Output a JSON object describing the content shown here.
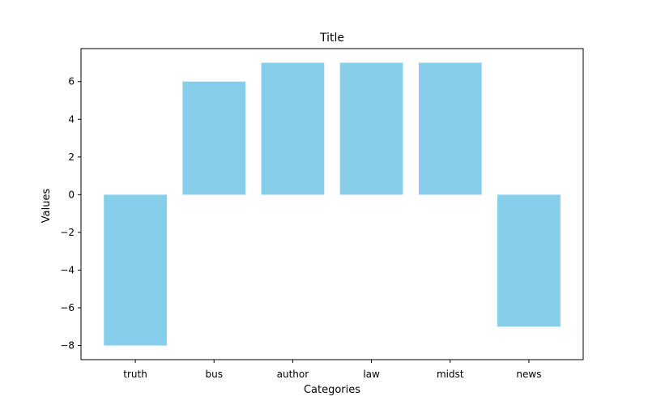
{
  "chart_data": {
    "type": "bar",
    "title": "Title",
    "xlabel": "Categories",
    "ylabel": "Values",
    "categories": [
      "truth",
      "bus",
      "author",
      "law",
      "midst",
      "news"
    ],
    "values": [
      -8,
      6,
      7,
      7,
      7,
      -7
    ],
    "ylim": [
      -8.75,
      7.75
    ],
    "yticks": [
      -8,
      -6,
      -4,
      -2,
      0,
      2,
      4,
      6
    ],
    "ytick_labels": [
      "−8",
      "−6",
      "−4",
      "−2",
      "0",
      "2",
      "4",
      "6"
    ],
    "bar_color": "#87ceeb",
    "grid": false,
    "legend": "none"
  }
}
